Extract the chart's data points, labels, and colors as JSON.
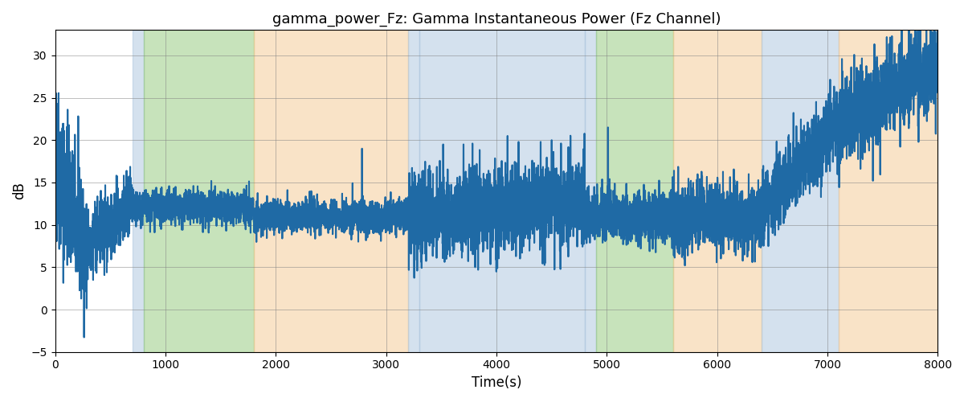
{
  "title": "gamma_power_Fz: Gamma Instantaneous Power (Fz Channel)",
  "xlabel": "Time(s)",
  "ylabel": "dB",
  "xlim": [
    0,
    8000
  ],
  "ylim": [
    -5,
    33
  ],
  "line_color": "#1f6aa5",
  "line_width": 1.5,
  "background_color": "#ffffff",
  "grid": true,
  "figsize": [
    12,
    5
  ],
  "dpi": 100,
  "bands": [
    {
      "start": 700,
      "end": 800,
      "color": "#aac4de",
      "alpha": 0.5
    },
    {
      "start": 800,
      "end": 1800,
      "color": "#90c878",
      "alpha": 0.5
    },
    {
      "start": 1800,
      "end": 3200,
      "color": "#f5c890",
      "alpha": 0.5
    },
    {
      "start": 3200,
      "end": 3300,
      "color": "#aac4de",
      "alpha": 0.5
    },
    {
      "start": 3300,
      "end": 4800,
      "color": "#aac4de",
      "alpha": 0.5
    },
    {
      "start": 4800,
      "end": 4900,
      "color": "#aac4de",
      "alpha": 0.5
    },
    {
      "start": 4900,
      "end": 5600,
      "color": "#90c878",
      "alpha": 0.5
    },
    {
      "start": 5600,
      "end": 6400,
      "color": "#f5c890",
      "alpha": 0.5
    },
    {
      "start": 6400,
      "end": 7100,
      "color": "#aac4de",
      "alpha": 0.5
    },
    {
      "start": 7100,
      "end": 8000,
      "color": "#f5c890",
      "alpha": 0.5
    }
  ],
  "seed": 42,
  "yticks": [
    -5,
    0,
    5,
    10,
    15,
    20,
    25,
    30
  ],
  "xticks": [
    0,
    1000,
    2000,
    3000,
    4000,
    5000,
    6000,
    7000,
    8000
  ]
}
